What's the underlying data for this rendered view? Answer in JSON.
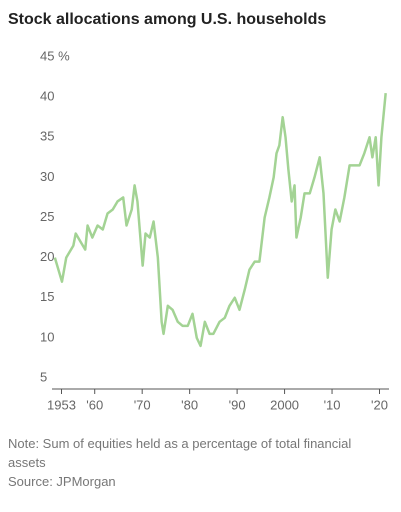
{
  "chart_data": {
    "type": "line",
    "title": "Stock allocations among U.S. households",
    "note": "Note: Sum of equities held as a percentage of total financial assets",
    "source": "Source: JPMorgan",
    "x": [
      1951.6,
      1953.1,
      1954,
      1955.5,
      1956,
      1957,
      1958,
      1958.5,
      1959.5,
      1960.6,
      1961.7,
      1962.7,
      1963.8,
      1964.8,
      1966,
      1966.7,
      1967.8,
      1968.4,
      1969,
      1970.1,
      1970.7,
      1971.6,
      1972.4,
      1973.3,
      1974.1,
      1974.5,
      1975.4,
      1976.4,
      1977.5,
      1978.5,
      1979.6,
      1980.6,
      1981.5,
      1982.3,
      1983.2,
      1984.2,
      1985,
      1986.3,
      1987.4,
      1988.4,
      1989.5,
      1990.5,
      1991.6,
      1992.6,
      1993.7,
      1994.7,
      1995.8,
      1996.8,
      1997.7,
      1998.3,
      1998.9,
      1999.6,
      2000.2,
      2000.8,
      2001.5,
      2002.1,
      2002.5,
      2003.4,
      2004.2,
      2005.3,
      2006.3,
      2007.4,
      2008.2,
      2009.1,
      2009.9,
      2010.7,
      2011.6,
      2012.6,
      2013.7,
      2014.7,
      2015.8,
      2016.8,
      2017.9,
      2018.5,
      2019.2,
      2019.8,
      2020.4,
      2021.3
    ],
    "series": [
      {
        "color": "#a3d394",
        "values": [
          20,
          17,
          20,
          21.5,
          23,
          22,
          21,
          24,
          22.5,
          24,
          23.5,
          25.5,
          26,
          27,
          27.5,
          24,
          26,
          29,
          27,
          19,
          23,
          22.5,
          24.5,
          20,
          12,
          10.5,
          14,
          13.5,
          12,
          11.5,
          11.5,
          13,
          10,
          9,
          12,
          10.5,
          10.5,
          12,
          12.5,
          14,
          15,
          13.5,
          16,
          18.5,
          19.5,
          19.5,
          25,
          27.5,
          30,
          33,
          34,
          37.5,
          35,
          31,
          27,
          29,
          22.5,
          25,
          28,
          28,
          30,
          32.5,
          28,
          17.5,
          23.5,
          26,
          24.5,
          27.5,
          31.5,
          31.5,
          31.5,
          33,
          35,
          32.5,
          35,
          29,
          35,
          40.5
        ]
      }
    ],
    "xlim": [
      1951,
      2022
    ],
    "xticks": [
      1953,
      {
        "value": 1960,
        "label": "'60"
      },
      {
        "value": 1970,
        "label": "'70"
      },
      {
        "value": 1980,
        "label": "'80"
      },
      {
        "value": 1990,
        "label": "'90"
      },
      2000,
      {
        "value": 2010,
        "label": "'10"
      },
      {
        "value": 2020,
        "label": "'20"
      }
    ],
    "ylim": [
      5,
      45
    ],
    "yticks": [
      5,
      10,
      15,
      20,
      25,
      30,
      35,
      40,
      {
        "value": 45,
        "label": "45 %"
      }
    ],
    "grid": false
  }
}
